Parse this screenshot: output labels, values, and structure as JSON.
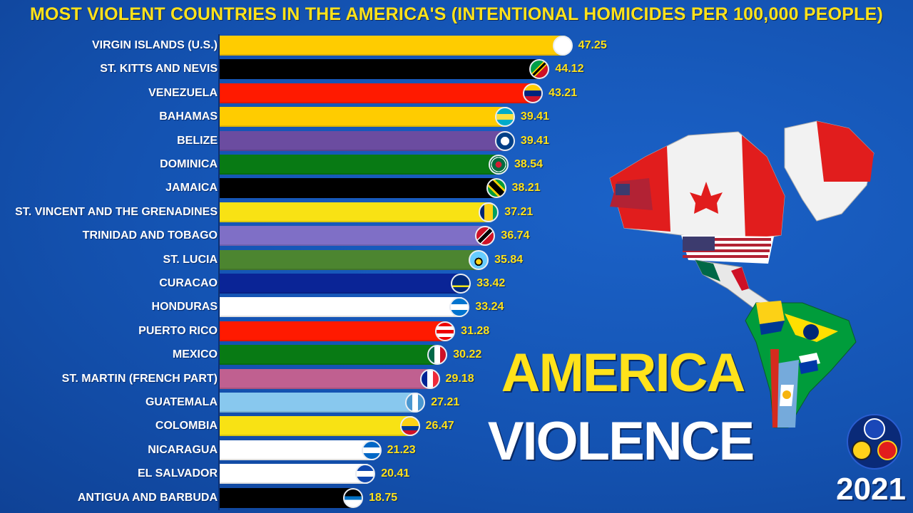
{
  "year": "2021",
  "overlay": {
    "line1": "AMERICA",
    "line2": "VIOLENCE"
  },
  "chart_data": {
    "type": "bar",
    "title": "MOST VIOLENT COUNTRIES IN THE AMERICA'S (INTENTIONAL HOMICIDES PER 100,000 PEOPLE)",
    "xlim": [
      0,
      50
    ],
    "categories": [
      "VIRGIN ISLANDS (U.S.)",
      "ST. KITTS AND NEVIS",
      "VENEZUELA",
      "BAHAMAS",
      "BELIZE",
      "DOMINICA",
      "JAMAICA",
      "ST. VINCENT AND THE GRENADINES",
      "TRINIDAD AND TOBAGO",
      "ST. LUCIA",
      "CURACAO",
      "HONDURAS",
      "PUERTO RICO",
      "MEXICO",
      "ST. MARTIN (FRENCH PART)",
      "GUATEMALA",
      "COLOMBIA",
      "NICARAGUA",
      "EL SALVADOR",
      "ANTIGUA AND BARBUDA"
    ],
    "values": [
      47.25,
      44.12,
      43.21,
      39.41,
      39.41,
      38.54,
      38.21,
      37.21,
      36.74,
      35.84,
      33.42,
      33.24,
      31.28,
      30.22,
      29.18,
      27.21,
      26.47,
      21.23,
      20.41,
      18.75
    ],
    "value_labels": [
      "47.25",
      "44.12",
      "43.21",
      "39.41",
      "39.41",
      "38.54",
      "38.21",
      "37.21",
      "36.74",
      "35.84",
      "33.42",
      "33.24",
      "31.28",
      "30.22",
      "29.18",
      "27.21",
      "26.47",
      "21.23",
      "20.41",
      "18.75"
    ],
    "bar_colors": [
      "#ffcc00",
      "#000000",
      "#ff1a00",
      "#ffcc00",
      "#6b4ca0",
      "#087a14",
      "#000000",
      "#f8e214",
      "#7f6fc6",
      "#4c8530",
      "#0a2496",
      "#ffffff",
      "#ff1a00",
      "#087a14",
      "#c06090",
      "#88c8ee",
      "#f8e214",
      "#ffffff",
      "#ffffff",
      "#000000"
    ],
    "flag_icons": [
      "virgin-islands-flag-icon",
      "st-kitts-and-nevis-flag-icon",
      "venezuela-flag-icon",
      "bahamas-flag-icon",
      "belize-flag-icon",
      "dominica-flag-icon",
      "jamaica-flag-icon",
      "st-vincent-flag-icon",
      "trinidad-and-tobago-flag-icon",
      "st-lucia-flag-icon",
      "curacao-flag-icon",
      "honduras-flag-icon",
      "puerto-rico-flag-icon",
      "mexico-flag-icon",
      "st-martin-flag-icon",
      "guatemala-flag-icon",
      "colombia-flag-icon",
      "nicaragua-flag-icon",
      "el-salvador-flag-icon",
      "antigua-and-barbuda-flag-icon"
    ],
    "flag_backgrounds": [
      "#ffffff",
      "linear-gradient(135deg, #009e49 0 40%, #ffd100 40% 45%, #000000 45% 55%, #ffd100 55% 60%, #ce1126 60%)",
      "linear-gradient(#ffcc00 0 33%, #00247d 33% 66%, #cf142b 66%)",
      "linear-gradient(#00abc9 0 33%, #fae042 33% 66%, #00abc9 66%)",
      "radial-gradient(circle, #ffffff 0 35%, #003f87 36%)",
      "radial-gradient(circle, #d41c30 0 25%, #006b3f 26% 55%, #ffffff 56% 62%, #006b3f 63%)",
      "linear-gradient(45deg, #009b3a 0 30%, #fed100 30% 38%, #000000 38% 62%, #fed100 62% 70%, #009b3a 70%)",
      "linear-gradient(90deg, #002674 0 25%, #fcd116 25% 75%, #009e60 75%)",
      "linear-gradient(135deg, #ce1126 0 38%, #ffffff 38% 42%, #000000 42% 58%, #ffffff 58% 62%, #ce1126 62%)",
      "radial-gradient(circle at 50% 60%, #fcd116 0 20%, #000000 21% 30%, #66ccff 31%)",
      "linear-gradient(#002b7f 0 60%, #f9e814 60% 70%, #002b7f 70%)",
      "linear-gradient(#0073cf 0 33%, #ffffff 33% 66%, #0073cf 66%)",
      "repeating-linear-gradient(#ed0000 0 5px, #ffffff 5px 10px)",
      "linear-gradient(90deg, #006847 0 33%, #ffffff 33% 66%, #ce1126 66%)",
      "linear-gradient(90deg, #002395 0 33%, #ffffff 33% 66%, #ed2939 66%)",
      "linear-gradient(90deg, #4997d0 0 33%, #ffffff 33% 66%, #4997d0 66%)",
      "linear-gradient(#fcd116 0 50%, #003893 50% 75%, #ce1126 75%)",
      "linear-gradient(#0067c6 0 33%, #ffffff 33% 66%, #0067c6 66%)",
      "linear-gradient(#0f47af 0 33%, #ffffff 33% 66%, #0f47af 66%)",
      "linear-gradient(#000000 0 40%, #0072c6 40% 60%, #ffffff 60%)"
    ]
  }
}
